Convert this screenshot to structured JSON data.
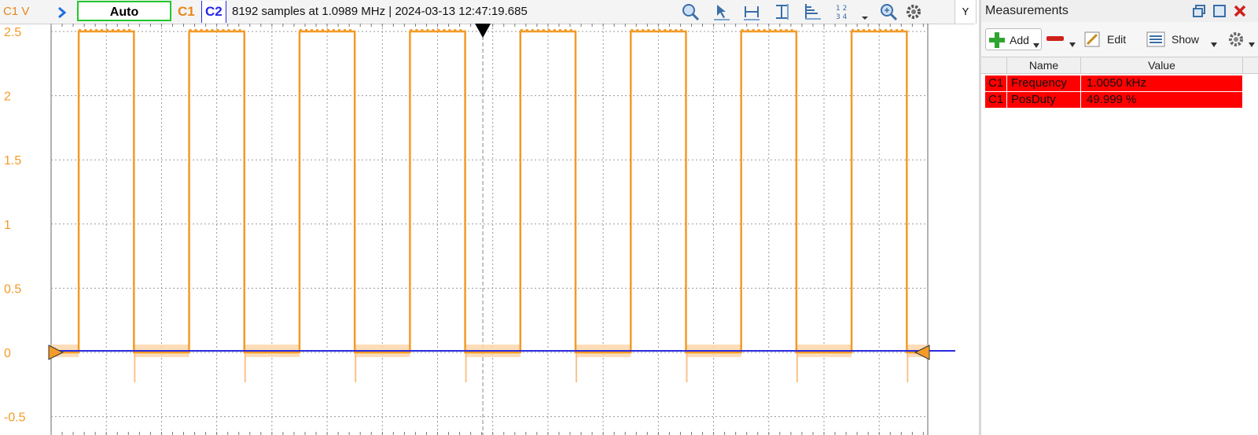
{
  "toolbar": {
    "channel_label": "C1 V",
    "trigger_mode": "Auto",
    "c1_label": "C1",
    "c2_label": "C2",
    "status_text": "8192 samples at 1.0989 MHz  | 2024-03-13 12:47:19.685",
    "y_label": "Y",
    "icons": [
      "arrow-right-icon",
      "zoom-icon",
      "cursor-arrow-icon",
      "horizontal-measure-icon",
      "vertical-measure-icon",
      "stair-icon",
      "grid-number-icon",
      "dropdown-icon",
      "zoom-icon",
      "gear-icon"
    ]
  },
  "scope": {
    "y_ticks": [
      "2.5",
      "2",
      "1.5",
      "1",
      "0.5",
      "0",
      "-0.5"
    ],
    "y_values": [
      2.5,
      2,
      1.5,
      1,
      0.5,
      0,
      -0.5
    ],
    "ylim": [
      -0.55,
      2.55
    ],
    "c1_color": "#f39a27",
    "c2_color": "#2a2ae0",
    "grid_color": "#9a9a9a",
    "rising_edges": [
      0.5,
      2.5,
      4.5,
      6.5,
      8.5,
      10.5,
      12.5,
      14.5
    ],
    "falling_edges": [
      1.5,
      3.5,
      5.5,
      7.5,
      9.5,
      11.5,
      13.5,
      15.5
    ],
    "h_divisions": 15.88,
    "signal_high": 2.5,
    "signal_low": 0
  },
  "measurements": {
    "title": "Measurements",
    "add_label": "Add",
    "edit_label": "Edit",
    "show_label": "Show",
    "col_name": "Name",
    "col_value": "Value",
    "rows": [
      {
        "ch": "C1",
        "name": "Frequency",
        "value": "1.0050 kHz"
      },
      {
        "ch": "C1",
        "name": "PosDuty",
        "value": "49.999 %"
      }
    ]
  }
}
